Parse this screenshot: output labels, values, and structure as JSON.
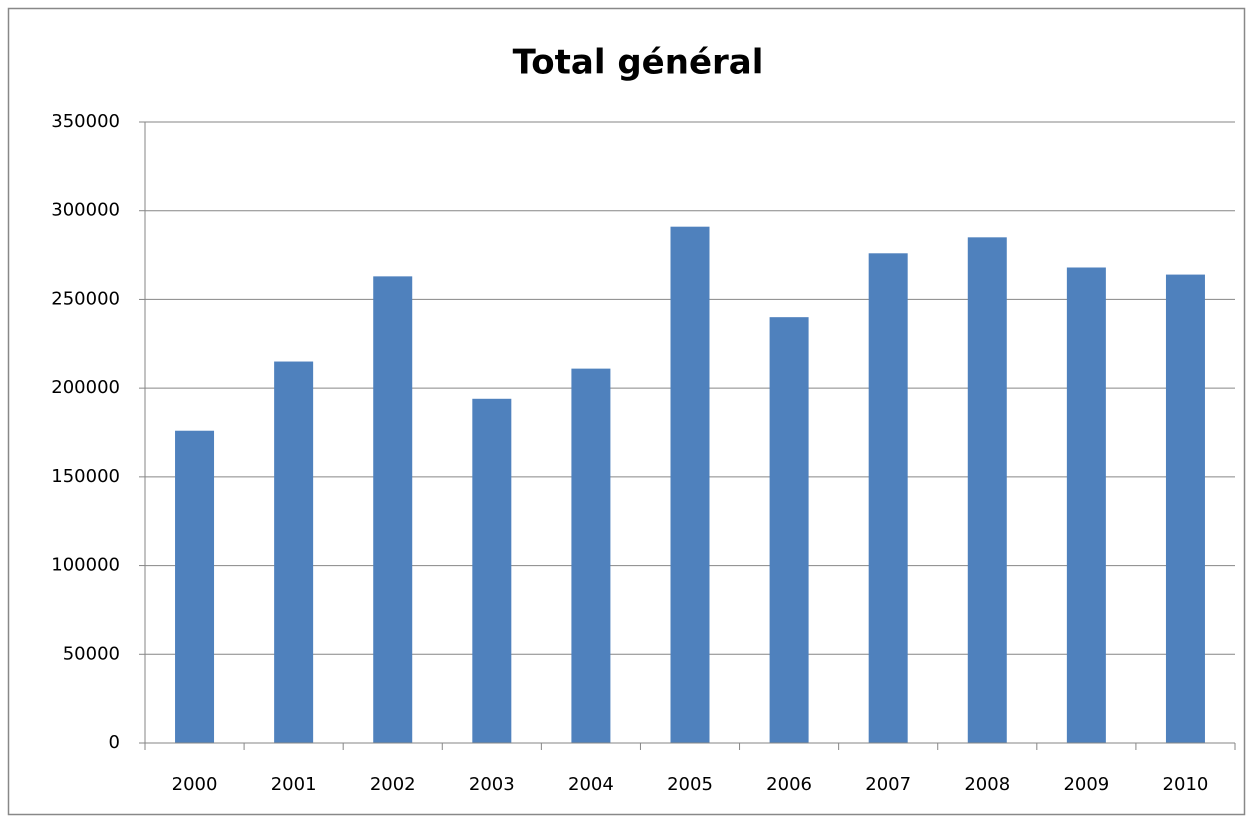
{
  "chart_data": {
    "type": "bar",
    "title": "Total général",
    "categories": [
      "2000",
      "2001",
      "2002",
      "2003",
      "2004",
      "2005",
      "2006",
      "2007",
      "2008",
      "2009",
      "2010"
    ],
    "values": [
      176000,
      215000,
      263000,
      194000,
      211000,
      291000,
      240000,
      276000,
      285000,
      268000,
      264000
    ],
    "color": "#4f81bd",
    "ylim": [
      0,
      350000
    ],
    "yticks": [
      0,
      50000,
      100000,
      150000,
      200000,
      250000,
      300000,
      350000
    ],
    "grid": true
  }
}
